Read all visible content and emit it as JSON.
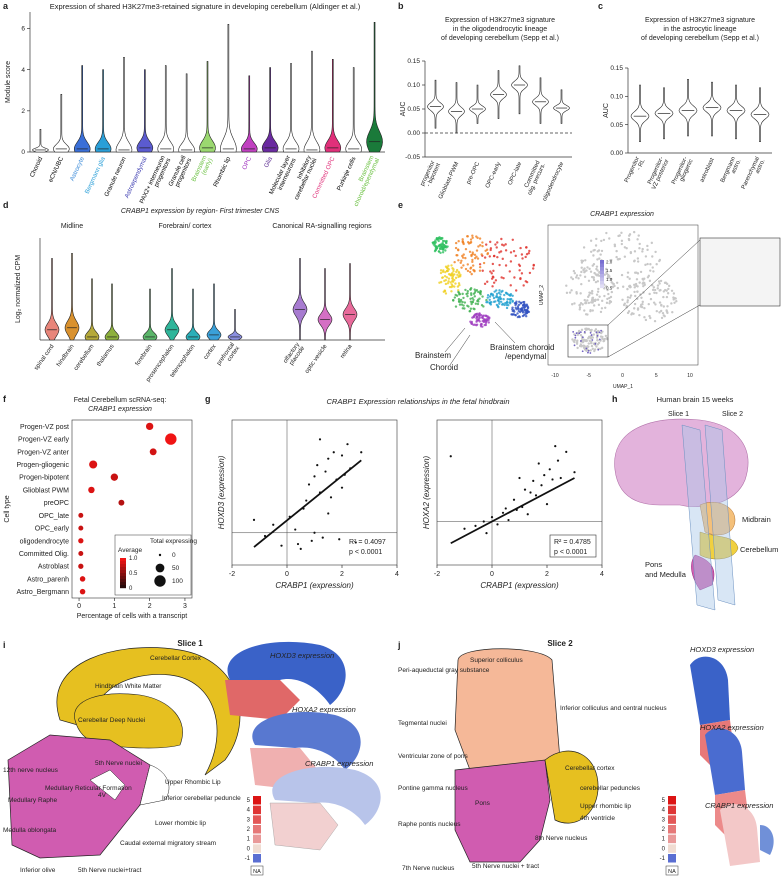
{
  "panels": {
    "a": "a",
    "b": "b",
    "c": "c",
    "d": "d",
    "e": "e",
    "f": "f",
    "g": "g",
    "h": "h",
    "i": "i",
    "j": "j"
  },
  "chart_data": [
    {
      "type": "violin",
      "title": "Expression of shared H3K27me3-retained signature in developing cerebellum (Aldinger et al.)",
      "y_label": "Module score",
      "categories": [
        "Choroid",
        "eCN/UBC",
        "Astrocyte",
        "Bergmann glia",
        "Granule neuron",
        "Astroependymal",
        "PAX2+ interneuron progenitors",
        "Granule cell progenitors",
        "Brainstem (early)",
        "Rhombic lip",
        "OPC",
        "Glia",
        "Molecular layer interneurons",
        "Inhibitory cerebellar nuclei",
        "Committed OPC",
        "Purkinje cells",
        "Brainstem choroid/ependymal"
      ],
      "values": [
        0.1,
        0.15,
        0.15,
        0.15,
        0.1,
        0.2,
        0.15,
        0.1,
        0.2,
        0.15,
        0.15,
        0.2,
        0.15,
        0.1,
        0.2,
        0.15,
        0.5
      ],
      "upper": [
        1.1,
        2.8,
        4.2,
        4.0,
        4.6,
        4.0,
        4.2,
        3.8,
        4.4,
        6.2,
        3.7,
        4.1,
        4.3,
        4.9,
        4.5,
        4.1,
        6.3
      ],
      "lower": [
        0,
        0,
        0,
        0,
        0,
        0,
        0,
        0,
        0,
        0,
        0,
        0,
        0,
        0,
        0,
        0,
        0
      ],
      "colors": [
        "#ffffff",
        "#ffffff",
        "#3a6fd8",
        "#2a9fd8",
        "#ffffff",
        "#5b5bd0",
        "#ffffff",
        "#ffffff",
        "#9bd870",
        "#ffffff",
        "#c040c0",
        "#6a2aa0",
        "#ffffff",
        "#ffffff",
        "#e0307a",
        "#ffffff",
        "#1a7a3a"
      ],
      "label_colors": [
        "#000000",
        "#000000",
        "#3a8ad8",
        "#2a9fd8",
        "#000000",
        "#3a3ab0",
        "#000000",
        "#000000",
        "#6ac040",
        "#000000",
        "#a030c0",
        "#5a2a90",
        "#000000",
        "#000000",
        "#e0307a",
        "#000000",
        "#6ac040"
      ],
      "ylim": [
        0,
        6.8
      ],
      "yticks": [
        0,
        2,
        4,
        6
      ]
    },
    {
      "type": "violin",
      "title": "Expression of H3K27me3 signature",
      "subtitle": "in the oligodendrocytic lineage",
      "subtitle2": "of developing cerebellum (Sepp et al.)",
      "y_label": "AUC",
      "categories": [
        "progenitor - bipotent",
        "Glioblast-PWM",
        "pre-OPC",
        "OPC-early",
        "OPC-late",
        "Committed olig. precurs.",
        "oligodendrocyte"
      ],
      "values": [
        0.055,
        0.045,
        0.05,
        0.08,
        0.1,
        0.065,
        0.052
      ],
      "upper": [
        0.11,
        0.105,
        0.1,
        0.13,
        0.14,
        0.115,
        0.09
      ],
      "lower": [
        0.01,
        0,
        0.02,
        0.03,
        0.04,
        0.02,
        0.02
      ],
      "colors": [
        "#ffffff",
        "#ffffff",
        "#ffffff",
        "#ffffff",
        "#ffffff",
        "#ffffff",
        "#ffffff"
      ],
      "ylim": [
        -0.05,
        0.15
      ],
      "yticks": [
        -0.05,
        {
          "value": 0,
          "label": "0.00"
        },
        0.05,
        {
          "value": 0.1,
          "label": "0.10"
        },
        0.15
      ],
      "zero_line": true
    },
    {
      "type": "violin",
      "title": "Expression of H3K27me3 signature",
      "subtitle": "in the astrocytic lineage",
      "subtitle2": "of developing cerebellum (Sepp et al.)",
      "y_label": "AUC",
      "categories": [
        "Progenitor - RL",
        "Progenitor- VZ posterior",
        "Progenitor- gliogenic",
        "astroblast",
        "Bergmann astro.",
        "Parenchymal astro."
      ],
      "values": [
        0.065,
        0.07,
        0.075,
        0.08,
        0.075,
        0.068
      ],
      "upper": [
        0.12,
        0.115,
        0.13,
        0.125,
        0.12,
        0.115
      ],
      "lower": [
        0.02,
        0.025,
        0.03,
        0.03,
        0.025,
        0.02
      ],
      "colors": [
        "#ffffff",
        "#ffffff",
        "#ffffff",
        "#ffffff",
        "#ffffff",
        "#ffffff"
      ],
      "ylim": [
        0,
        0.15
      ],
      "yticks": [
        {
          "value": 0,
          "label": "0.00"
        },
        0.05,
        {
          "value": 0.1,
          "label": "0.10"
        },
        0.15
      ]
    },
    {
      "type": "violin",
      "title": "CRABP1 expression by region- First trimester CNS",
      "y_label": "Log₂ normalized CPM",
      "groups": [
        "Midline",
        "Forebrain/ cortex",
        "Canonical RA-signalling regions"
      ],
      "categories": [
        "spinal cord",
        "hindbrain",
        "cerebellum",
        "thalamus",
        "forebrain",
        "prosencephalon",
        "telencephalon",
        "cortex",
        "prefrontal cortex",
        "olfactory placode",
        "optic vesicle",
        "retina"
      ],
      "values": [
        1,
        1.2,
        0.3,
        0.3,
        0.3,
        1,
        0.3,
        0.5,
        0.3,
        3,
        2,
        2.5
      ],
      "upper": [
        8,
        8.5,
        6,
        5.5,
        5,
        7,
        5,
        5.5,
        3,
        8,
        7,
        7.5
      ],
      "lower": [
        0,
        0,
        0,
        0,
        0,
        0,
        0,
        0,
        0,
        0,
        0,
        0
      ],
      "colors": [
        "#e8857a",
        "#d9912e",
        "#b5a93a",
        "#8db03d",
        "#5bb56a",
        "#2fb59a",
        "#2aafb8",
        "#3aa0d9",
        "#8b8fe0",
        "#a77bd0",
        "#d46fc4",
        "#e86a9a"
      ],
      "ylim": [
        0,
        10
      ]
    },
    {
      "type": "dot",
      "title": "Fetal Cerebellum scRNA-seq:",
      "subtitle": "CRABP1 expression",
      "x_label": "Percentage of cells with a transcript",
      "y_label": "Cell type",
      "categories": [
        "Progen-VZ post",
        "Progen-VZ early",
        "Progen-VZ anter",
        "Progen-gliogenic",
        "Progen-bipotent",
        "Glioblast PWM",
        "preOPC",
        "OPC_late",
        "OPC_early",
        "oligodendrocyte",
        "Committed Olig.",
        "Astroblast",
        "Astro_parenh",
        "Astro_Bergmann"
      ],
      "values": [
        2.0,
        2.6,
        2.1,
        0.4,
        1.0,
        0.35,
        1.2,
        0.05,
        0.05,
        0.05,
        0.05,
        0.05,
        0.1,
        0.1
      ],
      "sizes": [
        30,
        100,
        25,
        40,
        30,
        20,
        15,
        8,
        8,
        10,
        8,
        10,
        12,
        12
      ],
      "averages": [
        0.9,
        1.0,
        0.85,
        0.9,
        0.8,
        0.9,
        0.7,
        0.8,
        0.8,
        0.9,
        0.8,
        0.8,
        0.9,
        0.9
      ],
      "xlim": [
        -0.2,
        3.2
      ],
      "xticks": [
        0,
        1,
        2,
        3
      ],
      "color_title": "Average",
      "size_title": "Total expressing",
      "color_ticks": [
        0,
        0.5,
        {
          "value": 1,
          "label": "1.0"
        }
      ],
      "size_legend": [
        0,
        50,
        100
      ],
      "color": "#e01010"
    },
    {
      "type": "scatter",
      "title": "CRABP1 Expression relationships in the fetal hindbrain",
      "x_label": "CRABP1 (expression)",
      "y_label": "HOXD3 (expression)",
      "x": [
        -1.2,
        -0.8,
        -0.5,
        -0.2,
        0.1,
        0.3,
        0.5,
        0.7,
        0.8,
        0.9,
        1.0,
        1.1,
        1.2,
        1.3,
        1.4,
        1.5,
        1.6,
        1.7,
        1.8,
        1.9,
        2.0,
        2.1,
        2.2,
        2.3,
        2.5,
        2.7,
        0.6,
        1.0,
        1.5,
        2.0,
        0.4,
        1.2
      ],
      "values": [
        0.8,
        -0.2,
        0.5,
        -0.8,
        1.0,
        0.2,
        -1.0,
        2.0,
        3.0,
        -0.5,
        3.5,
        4.2,
        2.5,
        -0.3,
        3.8,
        4.6,
        2.2,
        5.0,
        3.3,
        -0.4,
        4.8,
        3.6,
        5.5,
        4.0,
        -0.6,
        5.0,
        1.5,
        0.0,
        1.2,
        2.8,
        -0.7,
        5.8
      ],
      "fit": {
        "slope": 1.38,
        "intercept": 0.77
      },
      "xlim": [
        -2,
        4
      ],
      "xticks": [
        -2,
        0,
        2,
        4
      ],
      "ylim": [
        -2,
        7
      ],
      "annotations": [
        "R² = 0.4097",
        "p < 0.0001"
      ]
    },
    {
      "type": "scatter",
      "x_label": "CRABP1 (expression)",
      "y_label": "HOXA2 (expression)",
      "x": [
        -1.5,
        -1.0,
        -0.6,
        -0.3,
        0.0,
        0.2,
        0.4,
        0.6,
        0.8,
        0.9,
        1.0,
        1.1,
        1.2,
        1.3,
        1.5,
        1.6,
        1.7,
        1.8,
        1.9,
        2.0,
        2.1,
        2.2,
        2.4,
        2.5,
        2.7,
        3.0,
        0.5,
        1.4,
        2.3,
        -0.2
      ],
      "values": [
        4.5,
        -0.5,
        -0.3,
        0.0,
        0.3,
        -0.2,
        0.6,
        0.1,
        1.5,
        0.8,
        3.0,
        1.0,
        2.2,
        0.5,
        2.8,
        1.8,
        4.0,
        2.5,
        3.2,
        1.2,
        3.6,
        2.9,
        4.2,
        3.0,
        4.8,
        3.4,
        0.9,
        2.0,
        5.2,
        -0.8
      ],
      "fit": {
        "slope": 1.0,
        "intercept": 0.0
      },
      "xlim": [
        -2,
        4
      ],
      "xticks": [
        -2,
        0,
        2,
        4
      ],
      "ylim": [
        -3,
        7
      ],
      "annotations": [
        "R² = 0.4785",
        "p < 0.0001"
      ]
    }
  ],
  "umap": {
    "title": "CRABP1 expression",
    "brainstem": "Brainstem",
    "choroid_ep": "Brainstem choroid",
    "ependymal": "/ependymal",
    "choroid": "Choroid",
    "x_label": "UMAP_1",
    "y_label": "UMAP_2",
    "xticks": [
      -10,
      -5,
      0,
      5,
      10
    ],
    "legend_ticks": [
      {
        "value": 2,
        "label": "2.0"
      },
      1.5,
      {
        "value": 1,
        "label": "1.0"
      },
      0.5
    ]
  },
  "brain": {
    "title": "Human brain 15 weeks",
    "slice1": "Slice 1",
    "slice2": "Slice 2",
    "midbrain": "Midbrain",
    "cerebellum": "Cerebellum",
    "pons": "Pons",
    "medulla": "and Medulla"
  },
  "slice1": {
    "title": "Slice 1",
    "labels": [
      "Cerebellar Cortex",
      "Hindbrain White Matter",
      "Cerebellar Deep Nuclei",
      "12th nerve nucleus",
      "5th Nerve nuclei",
      "Medullary Raphe",
      "Medullary Reticular Formation",
      "Medulla oblongata",
      "Inferior olive",
      "5th Nerve nuclei+tract",
      "Caudal external migratory stream",
      "Lower rhombic lip",
      "Inferior cerebellar peduncle",
      "Upper Rhombic Lip",
      "4V"
    ],
    "maps": [
      "HOXD3 expression",
      "HOXA2 expression",
      "CRABP1 expression"
    ],
    "scale": [
      5,
      4,
      3,
      2,
      1,
      0,
      -1
    ],
    "na": "NA"
  },
  "slice2": {
    "title": "Slice 2",
    "labels": [
      "Superior colliculus",
      "Peri-aqueductal gray substance",
      "Inferior colliculus and central nucleus",
      "Tegmental nuclei",
      "Ventricular zone of pons",
      "Pontine gamma nucleus",
      "Cerebellar cortex",
      "cerebellar peduncles",
      "Upper rhombic lip",
      "4th ventricle",
      "8th Nerve nucleus",
      "Pons",
      "Raphe pontis nucleus",
      "7th Nerve nucleus",
      "5th Nerve nuclei + tract"
    ],
    "maps": [
      "HOXD3 expression",
      "HOXA2 expression",
      "CRABP1 expression"
    ],
    "scale": [
      5,
      4,
      3,
      2,
      1,
      0,
      -1
    ],
    "na": "NA"
  }
}
